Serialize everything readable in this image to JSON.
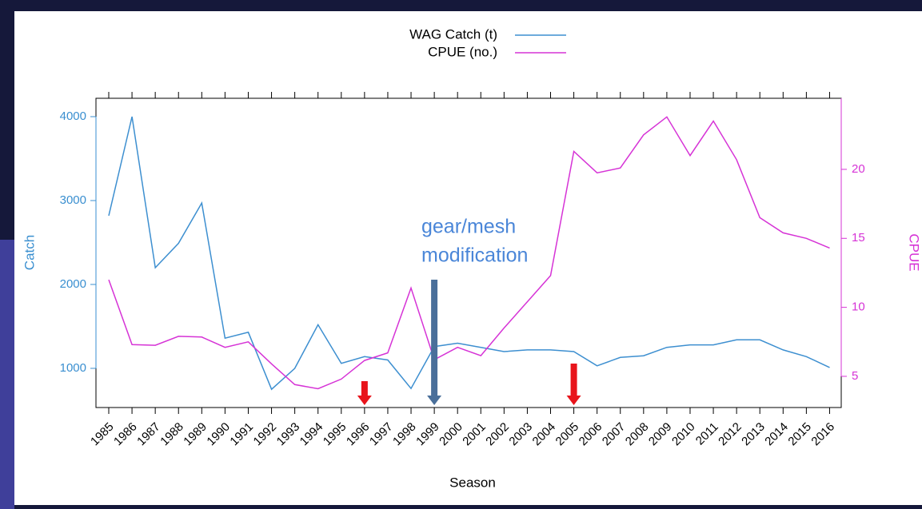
{
  "chart_data": {
    "type": "line",
    "x_label": "Season",
    "y_label": "Catch",
    "y2_label": "CPUE",
    "x": [
      1985,
      1986,
      1987,
      1988,
      1989,
      1990,
      1991,
      1992,
      1993,
      1994,
      1995,
      1996,
      1997,
      1998,
      1999,
      2000,
      2001,
      2002,
      2003,
      2004,
      2005,
      2006,
      2007,
      2008,
      2009,
      2010,
      2011,
      2012,
      2013,
      2014,
      2015,
      2016
    ],
    "xticks": [
      1985,
      1986,
      1987,
      1988,
      1989,
      1990,
      1991,
      1992,
      1993,
      1994,
      1995,
      1996,
      1997,
      1998,
      1999,
      2000,
      2001,
      2002,
      2003,
      2004,
      2005,
      2006,
      2007,
      2008,
      2009,
      2010,
      2011,
      2012,
      2013,
      2014,
      2015,
      2016
    ],
    "xlim": [
      1984.45,
      2016.5
    ],
    "ylim": [
      533,
      4219
    ],
    "yticks": [
      1000,
      2000,
      3000,
      4000
    ],
    "y_color": "#3a8fd0",
    "y2lim": [
      2.74,
      25.15
    ],
    "y2ticks": [
      5,
      10,
      15,
      20
    ],
    "y2_color": "#d633d6",
    "series": [
      {
        "name": "WAG Catch (t)",
        "color": "#3d8fd0",
        "values": [
          2820,
          4000,
          2200,
          2490,
          2970,
          1360,
          1430,
          750,
          1000,
          1520,
          1060,
          1140,
          1100,
          760,
          1260,
          1300,
          1250,
          1200,
          1220,
          1220,
          1200,
          1030,
          1130,
          1150,
          1250,
          1280,
          1280,
          1340,
          1340,
          1220,
          1140,
          1010
        ]
      },
      {
        "name": "CPUE (no.)",
        "color": "#d633d6",
        "axis": "y2",
        "values": [
          12.0,
          7.3,
          7.25,
          7.9,
          7.85,
          7.1,
          7.5,
          5.9,
          4.4,
          4.1,
          4.8,
          6.15,
          6.7,
          11.4,
          6.2,
          7.1,
          6.5,
          8.5,
          10.4,
          12.3,
          21.3,
          19.75,
          20.1,
          22.5,
          23.8,
          21.0,
          23.5,
          20.7,
          16.5,
          15.4,
          15.0,
          14.3
        ]
      }
    ],
    "annotation_lines": [
      "gear/mesh",
      "modification"
    ],
    "annotation_color": "#4a86d8",
    "markers": [
      {
        "x": 1996,
        "color": "#e8141b"
      },
      {
        "x": 1999,
        "color": "#4a6f9a"
      },
      {
        "x": 2005,
        "color": "#e8141b"
      }
    ]
  }
}
